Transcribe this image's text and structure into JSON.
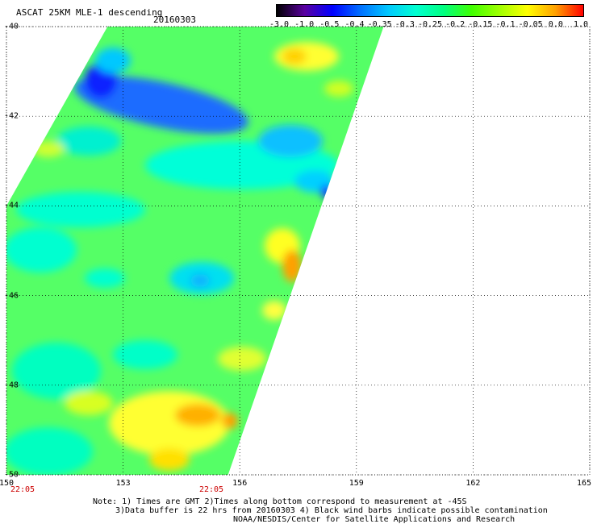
{
  "header": {
    "title": "ASCAT 25KM MLE-1 descending",
    "date": "20160303"
  },
  "colorbar": {
    "labels": [
      "-3.0",
      "-1.0",
      "-0.5",
      "-0.4",
      "-0.35",
      "-0.3",
      "-0.25",
      "-0.2",
      "-0.15",
      "-0.1",
      "-0.05",
      "0.0",
      "1.0"
    ],
    "colors": [
      "#000000",
      "#5a00a0",
      "#0000ff",
      "#0070ff",
      "#00c8ff",
      "#00ffd0",
      "#00ff80",
      "#40ff00",
      "#a0ff00",
      "#ffff00",
      "#ffa000",
      "#ff0000"
    ]
  },
  "map": {
    "lat_labels": [
      "-40",
      "-42",
      "-44",
      "-46",
      "-48",
      "-50"
    ],
    "lon_labels": [
      "150",
      "153",
      "156",
      "159",
      "162",
      "165"
    ],
    "lat_range": [
      -50,
      -40
    ],
    "lon_range": [
      150,
      165
    ],
    "grid": "dotted",
    "time_labels": [
      "22:05",
      "22:05"
    ],
    "swath_edges_lonlat": [
      [
        [
          152.6,
          -40.0
        ],
        [
          159.7,
          -40.0
        ],
        [
          155.7,
          -50.0
        ],
        [
          150.0,
          -50.0
        ],
        [
          150.0,
          -44.0
        ]
      ]
    ]
  },
  "notes": {
    "line1": "Note: 1) Times are GMT 2)Times along bottom correspond to measurement at -45S",
    "line2": "3)Data buffer is 22 hrs from 20160303 4) Black wind barbs indicate possible contamination",
    "line3": "NOAA/NESDIS/Center for Satellite Applications and Research"
  }
}
